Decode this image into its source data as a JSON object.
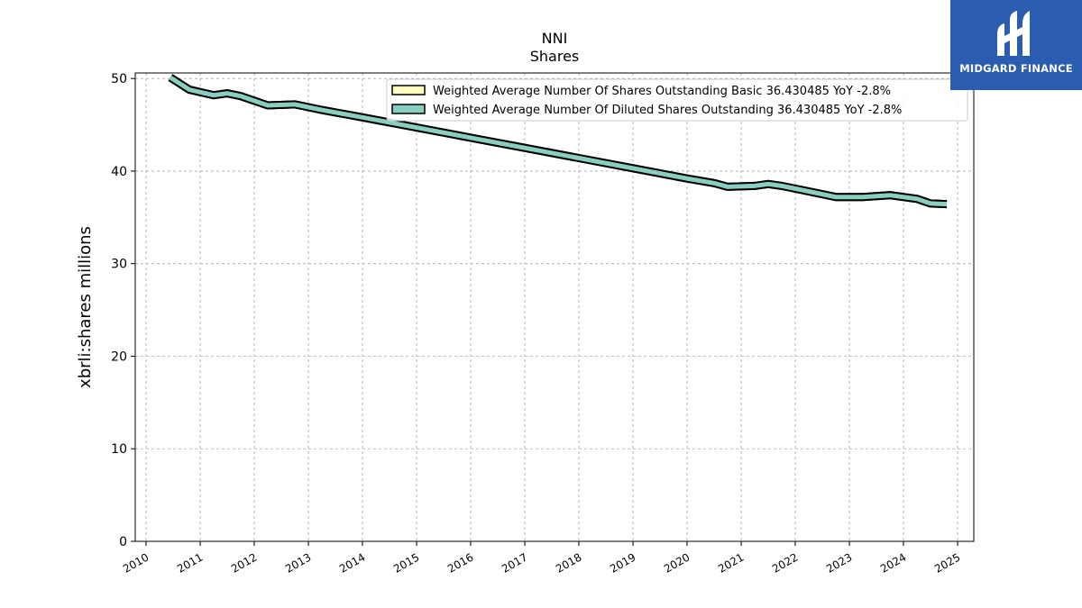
{
  "header": {
    "title": "NNI",
    "subtitle": "Shares"
  },
  "logo": {
    "text": "MIDGARD FINANCE",
    "icon": "midgard-logo-icon",
    "bg_color": "#2a5db0"
  },
  "chart_data": {
    "type": "line",
    "title": "NNI",
    "subtitle": "Shares",
    "xlabel": "",
    "ylabel": "xbrli:shares millions",
    "xlim": [
      2009.8,
      2025.3
    ],
    "ylim": [
      0,
      50.6
    ],
    "x_ticks": [
      "2010",
      "2011",
      "2012",
      "2013",
      "2014",
      "2015",
      "2016",
      "2017",
      "2018",
      "2019",
      "2020",
      "2021",
      "2022",
      "2023",
      "2024",
      "2025"
    ],
    "y_ticks": [
      0,
      10,
      20,
      30,
      40,
      50
    ],
    "grid": true,
    "legend_position": "top-right",
    "series": [
      {
        "name": "Weighted Average Number Of Shares Outstanding Basic  36.430485 YoY -2.8%",
        "color": "#ffffc0",
        "x": [
          2010.45,
          2010.8,
          2011.25,
          2011.5,
          2011.75,
          2012.25,
          2012.75,
          2013.25,
          2014.0,
          2015.0,
          2016.0,
          2017.0,
          2018.0,
          2019.0,
          2020.0,
          2020.5,
          2020.75,
          2021.25,
          2021.5,
          2021.75,
          2022.25,
          2022.75,
          2023.25,
          2023.75,
          2024.25,
          2024.5,
          2024.8
        ],
        "y": [
          50.1,
          48.8,
          48.2,
          48.4,
          48.1,
          47.1,
          47.2,
          46.6,
          45.8,
          44.7,
          43.6,
          42.5,
          41.4,
          40.3,
          39.2,
          38.7,
          38.3,
          38.4,
          38.6,
          38.4,
          37.8,
          37.2,
          37.2,
          37.4,
          37.0,
          36.5,
          36.43
        ]
      },
      {
        "name": "Weighted Average Number Of Diluted Shares Outstanding  36.430485 YoY -2.8%",
        "color": "#88cfc0",
        "x": [
          2010.45,
          2010.8,
          2011.25,
          2011.5,
          2011.75,
          2012.25,
          2012.75,
          2013.25,
          2014.0,
          2015.0,
          2016.0,
          2017.0,
          2018.0,
          2019.0,
          2020.0,
          2020.5,
          2020.75,
          2021.25,
          2021.5,
          2021.75,
          2022.25,
          2022.75,
          2023.25,
          2023.75,
          2024.25,
          2024.5,
          2024.8
        ],
        "y": [
          50.1,
          48.8,
          48.2,
          48.4,
          48.1,
          47.1,
          47.2,
          46.6,
          45.8,
          44.7,
          43.6,
          42.5,
          41.4,
          40.3,
          39.2,
          38.7,
          38.3,
          38.4,
          38.6,
          38.4,
          37.8,
          37.2,
          37.2,
          37.4,
          37.0,
          36.5,
          36.43
        ]
      }
    ]
  }
}
